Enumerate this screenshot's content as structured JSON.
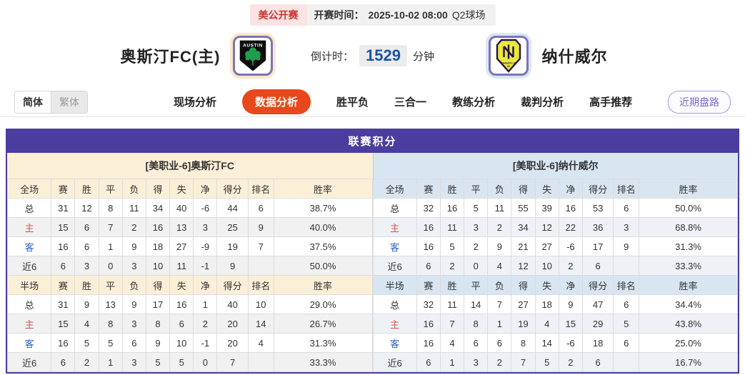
{
  "top_bar": {
    "league": "美公开赛",
    "kickoff_label": "开赛时间：",
    "kickoff_time": "2025-10-02 08:00",
    "venue": "Q2球场"
  },
  "header": {
    "home_team": "奥斯汀FC(主)",
    "away_team": "纳什威尔",
    "home_logo": "austin-fc-crest",
    "away_logo": "nashville-sc-crest",
    "countdown_label": "倒计时：",
    "countdown_value": "1529",
    "countdown_unit": "分钟"
  },
  "nav": {
    "lang_simplified": "简体",
    "lang_traditional": "繁体",
    "tabs": [
      "现场分析",
      "数据分析",
      "胜平负",
      "三合一",
      "教练分析",
      "裁判分析",
      "高手推荐"
    ],
    "active_tab": "数据分析",
    "recent_button": "近期盘路"
  },
  "table": {
    "title": "联赛积分",
    "columns_full": [
      "全场",
      "赛",
      "胜",
      "平",
      "负",
      "得",
      "失",
      "净",
      "得分",
      "排名",
      "胜率"
    ],
    "columns_half": [
      "半场",
      "赛",
      "胜",
      "平",
      "负",
      "得",
      "失",
      "净",
      "得分",
      "排名",
      "胜率"
    ],
    "home": {
      "header": "[美职业-6]奥斯汀FC",
      "full": [
        {
          "label": "总",
          "cells": [
            "31",
            "12",
            "8",
            "11",
            "34",
            "40",
            "-6",
            "44",
            "6",
            "38.7%"
          ]
        },
        {
          "label": "主",
          "cells": [
            "15",
            "6",
            "7",
            "2",
            "16",
            "13",
            "3",
            "25",
            "9",
            "40.0%"
          ]
        },
        {
          "label": "客",
          "cells": [
            "16",
            "6",
            "1",
            "9",
            "18",
            "27",
            "-9",
            "19",
            "7",
            "37.5%"
          ]
        },
        {
          "label": "近6",
          "cells": [
            "6",
            "3",
            "0",
            "3",
            "10",
            "11",
            "-1",
            "9",
            "",
            "50.0%"
          ]
        }
      ],
      "half": [
        {
          "label": "总",
          "cells": [
            "31",
            "9",
            "13",
            "9",
            "17",
            "16",
            "1",
            "40",
            "10",
            "29.0%"
          ]
        },
        {
          "label": "主",
          "cells": [
            "15",
            "4",
            "8",
            "3",
            "8",
            "6",
            "2",
            "20",
            "14",
            "26.7%"
          ]
        },
        {
          "label": "客",
          "cells": [
            "16",
            "5",
            "5",
            "6",
            "9",
            "10",
            "-1",
            "20",
            "4",
            "31.3%"
          ]
        },
        {
          "label": "近6",
          "cells": [
            "6",
            "2",
            "1",
            "3",
            "5",
            "5",
            "0",
            "7",
            "",
            "33.3%"
          ]
        }
      ]
    },
    "away": {
      "header": "[美职业-6]纳什威尔",
      "full": [
        {
          "label": "总",
          "cells": [
            "32",
            "16",
            "5",
            "11",
            "55",
            "39",
            "16",
            "53",
            "6",
            "50.0%"
          ]
        },
        {
          "label": "主",
          "cells": [
            "16",
            "11",
            "3",
            "2",
            "34",
            "12",
            "22",
            "36",
            "3",
            "68.8%"
          ]
        },
        {
          "label": "客",
          "cells": [
            "16",
            "5",
            "2",
            "9",
            "21",
            "27",
            "-6",
            "17",
            "9",
            "31.3%"
          ]
        },
        {
          "label": "近6",
          "cells": [
            "6",
            "2",
            "0",
            "4",
            "12",
            "10",
            "2",
            "6",
            "",
            "33.3%"
          ]
        }
      ],
      "half": [
        {
          "label": "总",
          "cells": [
            "32",
            "11",
            "14",
            "7",
            "27",
            "18",
            "9",
            "47",
            "6",
            "34.4%"
          ]
        },
        {
          "label": "主",
          "cells": [
            "16",
            "7",
            "8",
            "1",
            "19",
            "4",
            "15",
            "29",
            "5",
            "43.8%"
          ]
        },
        {
          "label": "客",
          "cells": [
            "16",
            "4",
            "6",
            "6",
            "8",
            "14",
            "-6",
            "18",
            "6",
            "25.0%"
          ]
        },
        {
          "label": "近6",
          "cells": [
            "6",
            "1",
            "3",
            "2",
            "7",
            "5",
            "2",
            "6",
            "",
            "16.7%"
          ]
        }
      ]
    }
  },
  "colors": {
    "board_purple": "#4b3d9e",
    "active_tab_orange": "#e8481c",
    "home_theme_cream": "#fcefd8",
    "away_theme_blue": "#d8e6f2",
    "league_chip_red": "#c9342e",
    "home_row_red": "#d9534f",
    "away_row_blue": "#2f62c9",
    "countdown_blue": "#1c52a8",
    "recent_btn_purple": "#7b68c8"
  }
}
